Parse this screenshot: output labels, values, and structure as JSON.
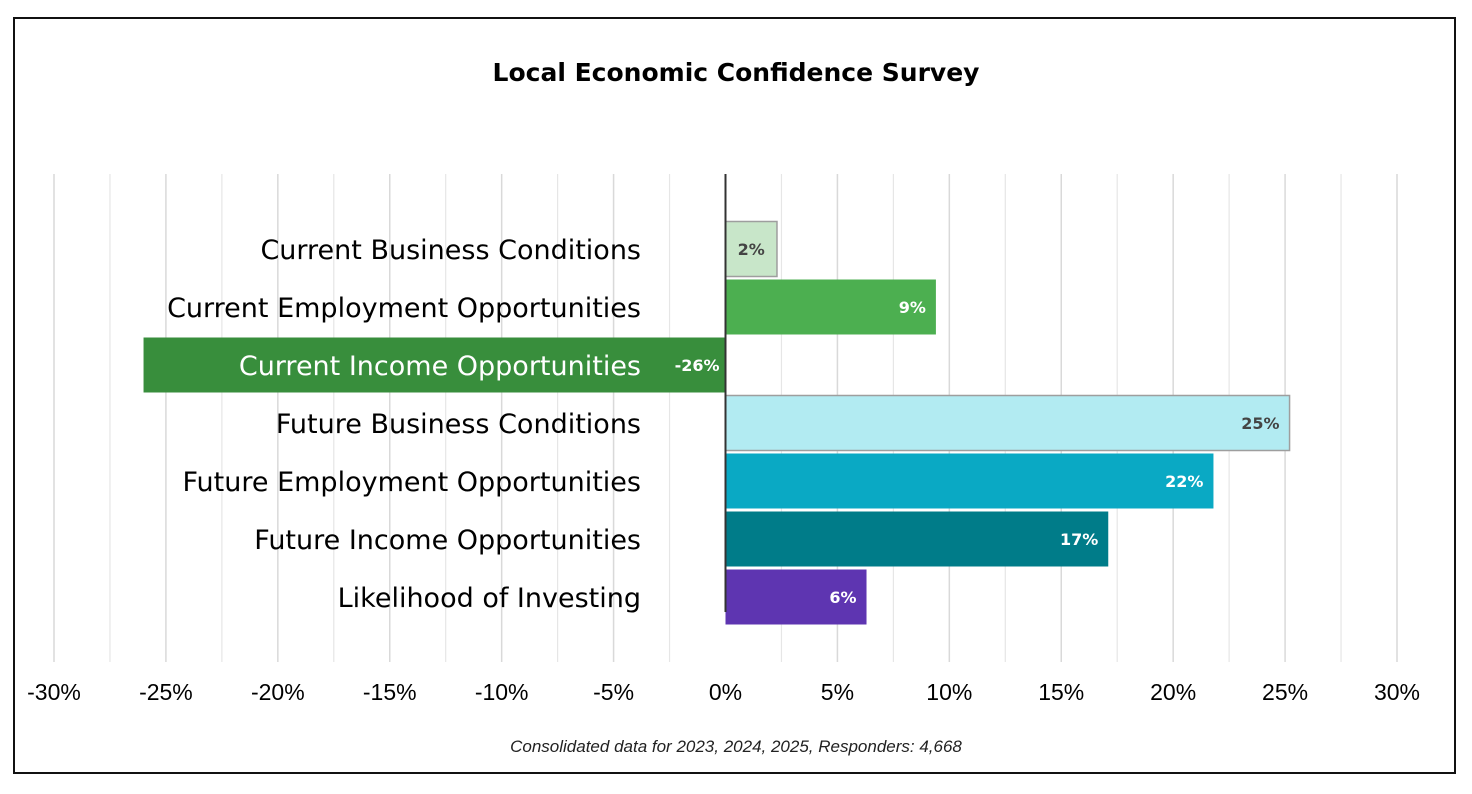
{
  "chart_data": {
    "type": "bar",
    "orientation": "horizontal",
    "title": "Local Economic Confidence Survey",
    "footnote": "Consolidated data for 2023, 2024, 2025, Responders: 4,668",
    "categories": [
      "Current Business Conditions",
      "Current Employment Opportunities",
      "Current Income Opportunities",
      "Future Business Conditions",
      "Future Employment Opportunities",
      "Future Income Opportunities",
      "Likelihood of Investing"
    ],
    "values": [
      2.3,
      9.4,
      -26.0,
      25.2,
      21.8,
      17.1,
      6.3
    ],
    "data_labels": [
      "2%",
      "9%",
      "-26%",
      "25%",
      "22%",
      "17%",
      "6%"
    ],
    "bar_colors": [
      "#c8e6c9",
      "#4caf50",
      "#388e3c",
      "#b2ebf2",
      "#0aa9c4",
      "#007c89",
      "#5e35b1"
    ],
    "label_colors": [
      "#444444",
      "#ffffff",
      "#ffffff",
      "#444444",
      "#ffffff",
      "#ffffff",
      "#ffffff"
    ],
    "xlim": [
      -30,
      30
    ],
    "x_ticks": [
      -30,
      -25,
      -20,
      -15,
      -10,
      -5,
      0,
      5,
      10,
      15,
      20,
      25,
      30
    ],
    "x_tick_labels": [
      "-30%",
      "-25%",
      "-20%",
      "-15%",
      "-10%",
      "-5%",
      "0%",
      "5%",
      "10%",
      "15%",
      "20%",
      "25%",
      "30%"
    ],
    "grid": true,
    "legend": "none"
  }
}
